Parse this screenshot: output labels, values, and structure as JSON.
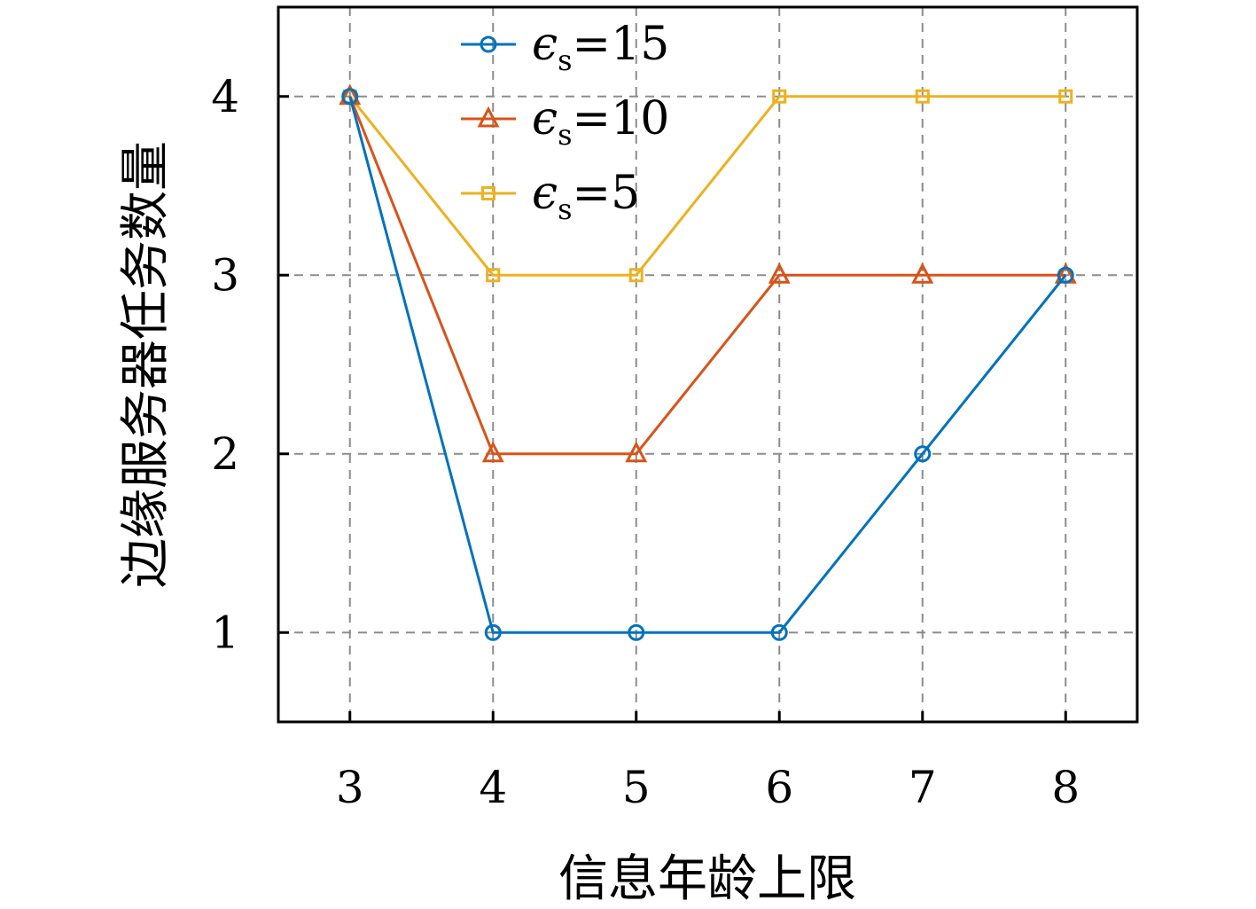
{
  "chart_data": {
    "type": "line",
    "title": "",
    "xlabel": "信息年龄上限",
    "ylabel": "边缘服务器任务数量",
    "x": [
      3,
      4,
      5,
      6,
      7,
      8
    ],
    "xlim": [
      2.5,
      8.5
    ],
    "ylim": [
      0.5,
      4.5
    ],
    "xticks": [
      3,
      4,
      5,
      6,
      7,
      8
    ],
    "yticks": [
      1,
      2,
      3,
      4
    ],
    "grid": true,
    "legend_position": "top-left",
    "series": [
      {
        "label_main": "ϵ",
        "label_sub": "s",
        "label_rest": "=15",
        "marker": "circle",
        "color": "#0072BD",
        "values": [
          4,
          1,
          1,
          1,
          2,
          3
        ]
      },
      {
        "label_main": "ϵ",
        "label_sub": "s",
        "label_rest": "=10",
        "marker": "triangle",
        "color": "#D95319",
        "values": [
          4,
          2,
          2,
          3,
          3,
          3
        ]
      },
      {
        "label_main": "ϵ",
        "label_sub": "s",
        "label_rest": "=5",
        "marker": "square",
        "color": "#EDB120",
        "values": [
          4,
          3,
          3,
          4,
          4,
          4
        ]
      }
    ]
  }
}
